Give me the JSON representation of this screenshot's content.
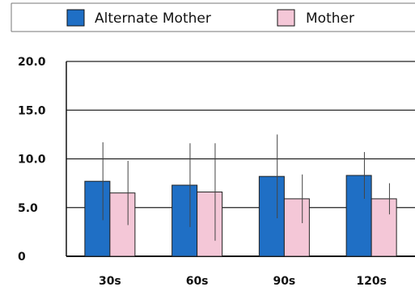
{
  "chart_data": {
    "type": "bar",
    "title": "",
    "xlabel": "",
    "ylabel": "",
    "categories": [
      "30s",
      "60s",
      "90s",
      "120s"
    ],
    "series": [
      {
        "name": "Alternate Mother",
        "color": "#1f6fc5",
        "values": [
          7.7,
          7.3,
          8.2,
          8.3
        ],
        "error": [
          4.0,
          4.3,
          4.3,
          2.4
        ]
      },
      {
        "name": "Mother",
        "color": "#f4c7d7",
        "values": [
          6.5,
          6.6,
          5.9,
          5.9
        ],
        "error": [
          3.3,
          5.0,
          2.5,
          1.6
        ]
      }
    ],
    "ylim": [
      0,
      20
    ],
    "yticks": [
      "0",
      "5.0",
      "10.0",
      "15.0",
      "20.0"
    ],
    "ytick_values": [
      0,
      5,
      10,
      15,
      20
    ],
    "grid": true,
    "legend_position": "top"
  }
}
